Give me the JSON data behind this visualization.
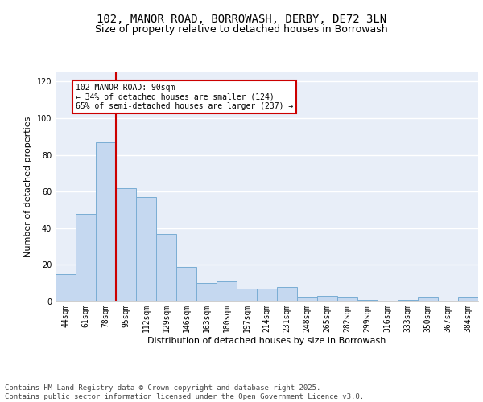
{
  "title_line1": "102, MANOR ROAD, BORROWASH, DERBY, DE72 3LN",
  "title_line2": "Size of property relative to detached houses in Borrowash",
  "xlabel": "Distribution of detached houses by size in Borrowash",
  "ylabel": "Number of detached properties",
  "categories": [
    "44sqm",
    "61sqm",
    "78sqm",
    "95sqm",
    "112sqm",
    "129sqm",
    "146sqm",
    "163sqm",
    "180sqm",
    "197sqm",
    "214sqm",
    "231sqm",
    "248sqm",
    "265sqm",
    "282sqm",
    "299sqm",
    "316sqm",
    "333sqm",
    "350sqm",
    "367sqm",
    "384sqm"
  ],
  "values": [
    15,
    48,
    87,
    62,
    57,
    37,
    19,
    10,
    11,
    7,
    7,
    8,
    2,
    3,
    2,
    1,
    0,
    1,
    2,
    0,
    2
  ],
  "bar_color": "#c5d8f0",
  "bar_edge_color": "#7aadd4",
  "background_color": "#e8eef8",
  "grid_color": "#ffffff",
  "vline_color": "#cc0000",
  "vline_x_index": 2.5,
  "annotation_text": "102 MANOR ROAD: 90sqm\n← 34% of detached houses are smaller (124)\n65% of semi-detached houses are larger (237) →",
  "annotation_box_facecolor": "#ffffff",
  "annotation_box_edgecolor": "#cc0000",
  "ylim": [
    0,
    125
  ],
  "yticks": [
    0,
    20,
    40,
    60,
    80,
    100,
    120
  ],
  "fig_background": "#ffffff",
  "footer_text": "Contains HM Land Registry data © Crown copyright and database right 2025.\nContains public sector information licensed under the Open Government Licence v3.0.",
  "title_fontsize": 10,
  "subtitle_fontsize": 9,
  "axis_label_fontsize": 8,
  "tick_fontsize": 7,
  "annotation_fontsize": 7,
  "footer_fontsize": 6.5,
  "ylabel_fontsize": 8
}
